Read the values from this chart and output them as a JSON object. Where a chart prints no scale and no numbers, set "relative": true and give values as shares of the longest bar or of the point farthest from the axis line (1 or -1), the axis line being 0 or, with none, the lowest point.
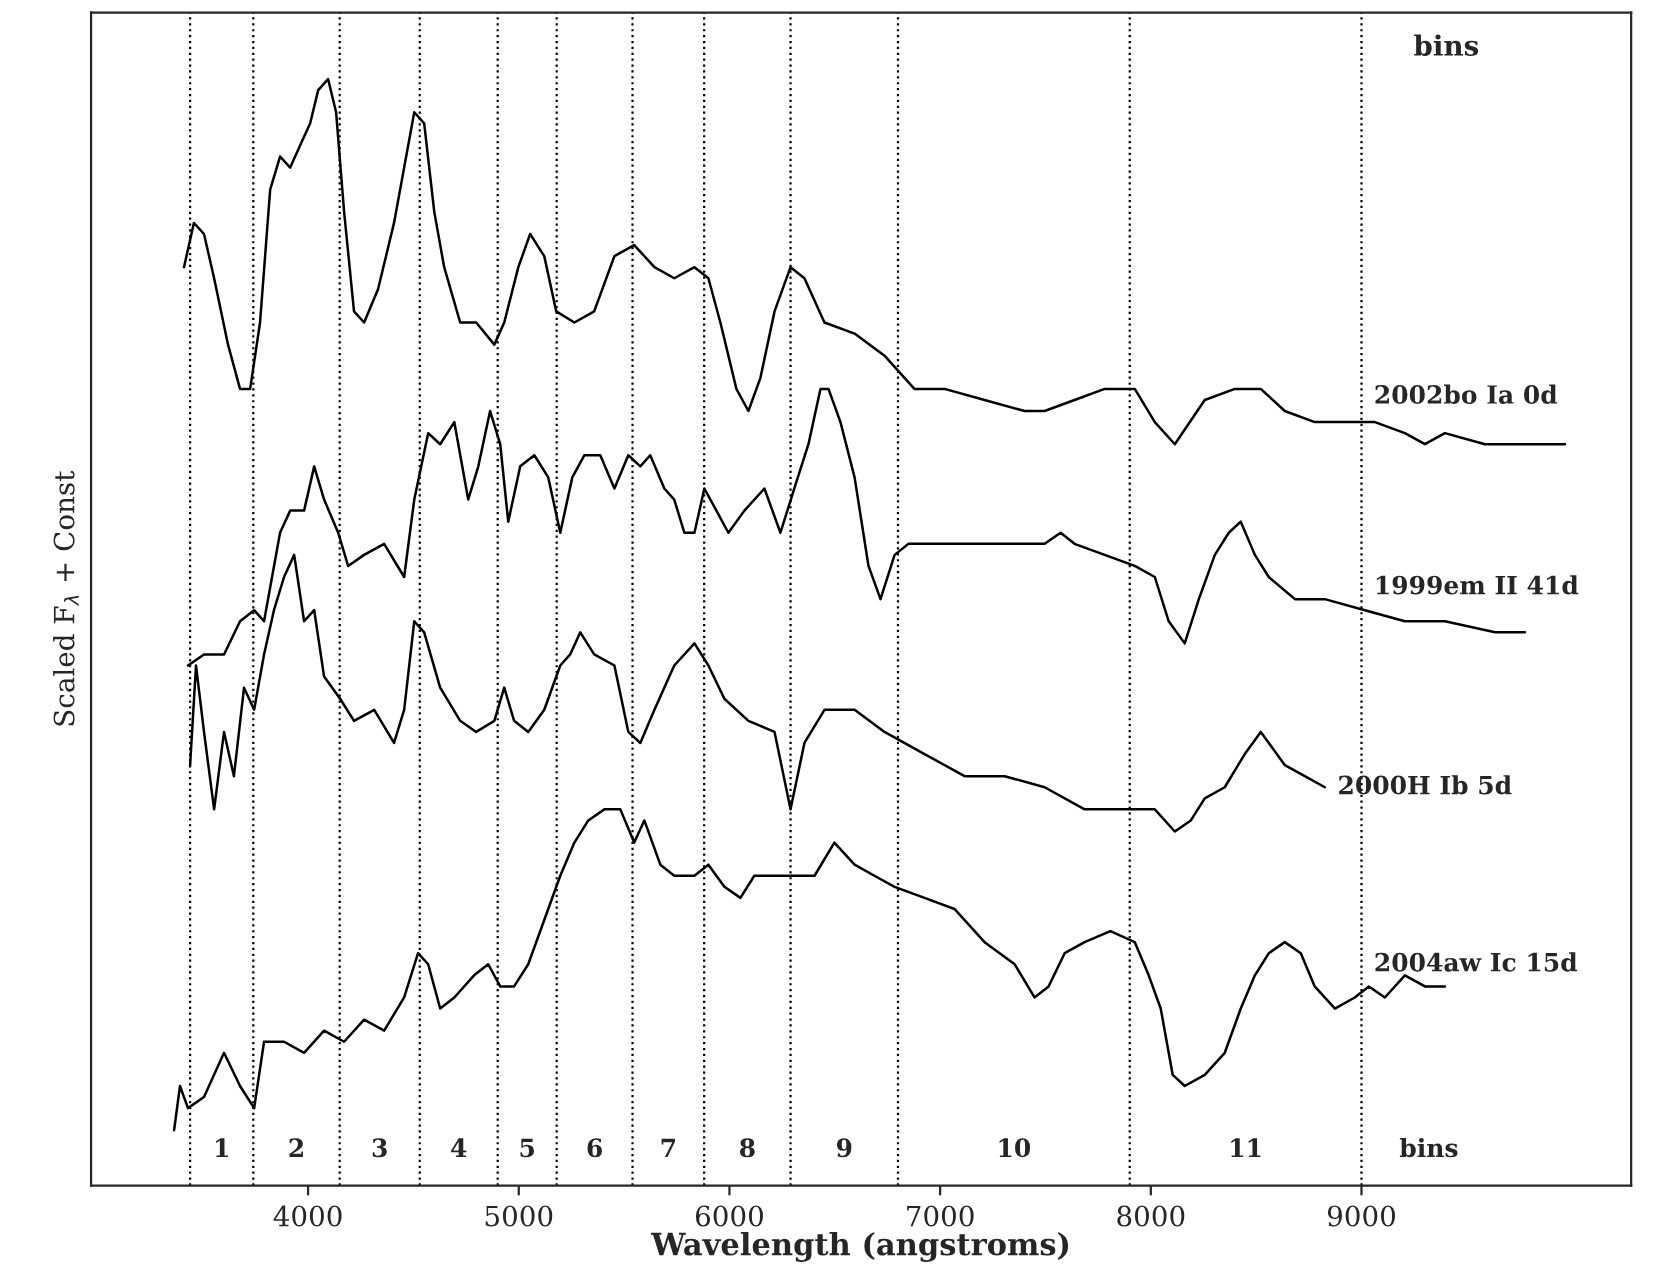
{
  "chart_data": {
    "type": "line",
    "relative": true,
    "xlabel": "Wavelength (angstroms)",
    "ylabel": "Scaled F$_{λ}$ + Const",
    "xlim": [
      2970,
      10280
    ],
    "xticks": [
      4000,
      5000,
      6000,
      7000,
      8000,
      9000
    ],
    "grid": false,
    "line_style": "solid",
    "marker": "none",
    "series": [
      {
        "name": "2002bo Ia 0d",
        "color": "#000000",
        "x": [
          3411,
          3458,
          3506,
          3554,
          3620,
          3677,
          3725,
          3772,
          3820,
          3867,
          3915,
          3962,
          4010,
          4048,
          4095,
          4133,
          4171,
          4218,
          4266,
          4332,
          4408,
          4456,
          4504,
          4551,
          4599,
          4646,
          4722,
          4798,
          4884,
          4931,
          4998,
          5054,
          5121,
          5178,
          5264,
          5358,
          5454,
          5548,
          5644,
          5738,
          5834,
          5900,
          5957,
          6033,
          6090,
          6147,
          6214,
          6290,
          6356,
          6451,
          6594,
          6736,
          6878,
          7021,
          7211,
          7401,
          7496,
          7638,
          7781,
          7924,
          8019,
          8114,
          8256,
          8399,
          8522,
          8636,
          8778,
          8921,
          9064,
          9206,
          9301,
          9396,
          9586,
          9776,
          9966
        ],
        "values": [
          0.83,
          0.87,
          0.86,
          0.82,
          0.76,
          0.72,
          0.72,
          0.78,
          0.9,
          0.93,
          0.92,
          0.94,
          0.96,
          0.99,
          1.0,
          0.97,
          0.88,
          0.79,
          0.78,
          0.81,
          0.87,
          0.92,
          0.97,
          0.96,
          0.88,
          0.83,
          0.78,
          0.78,
          0.76,
          0.78,
          0.83,
          0.86,
          0.84,
          0.79,
          0.78,
          0.79,
          0.84,
          0.85,
          0.83,
          0.82,
          0.83,
          0.82,
          0.78,
          0.72,
          0.7,
          0.73,
          0.79,
          0.83,
          0.82,
          0.78,
          0.77,
          0.75,
          0.72,
          0.72,
          0.71,
          0.7,
          0.7,
          0.71,
          0.72,
          0.72,
          0.69,
          0.67,
          0.71,
          0.72,
          0.72,
          0.7,
          0.69,
          0.69,
          0.69,
          0.68,
          0.67,
          0.68,
          0.67,
          0.67,
          0.67
        ]
      },
      {
        "name": "1999em II 41d",
        "color": "#000000",
        "x": [
          3430,
          3506,
          3601,
          3677,
          3744,
          3791,
          3867,
          3915,
          3981,
          4029,
          4076,
          4143,
          4190,
          4266,
          4361,
          4456,
          4504,
          4570,
          4627,
          4694,
          4760,
          4808,
          4864,
          4912,
          4950,
          5007,
          5074,
          5140,
          5197,
          5254,
          5311,
          5387,
          5454,
          5520,
          5577,
          5624,
          5691,
          5738,
          5786,
          5834,
          5881,
          5938,
          5995,
          6071,
          6166,
          6242,
          6308,
          6375,
          6432,
          6470,
          6527,
          6594,
          6660,
          6717,
          6784,
          6850,
          6926,
          7068,
          7306,
          7496,
          7572,
          7638,
          7781,
          7924,
          8019,
          8085,
          8161,
          8228,
          8304,
          8370,
          8427,
          8494,
          8560,
          8684,
          8826,
          9016,
          9206,
          9396,
          9634,
          9776
        ],
        "values": [
          0.47,
          0.48,
          0.48,
          0.51,
          0.52,
          0.51,
          0.59,
          0.61,
          0.61,
          0.65,
          0.62,
          0.59,
          0.56,
          0.57,
          0.58,
          0.55,
          0.62,
          0.68,
          0.67,
          0.69,
          0.62,
          0.65,
          0.7,
          0.67,
          0.6,
          0.65,
          0.66,
          0.64,
          0.59,
          0.64,
          0.66,
          0.66,
          0.63,
          0.66,
          0.65,
          0.66,
          0.63,
          0.62,
          0.59,
          0.59,
          0.63,
          0.61,
          0.59,
          0.61,
          0.63,
          0.59,
          0.63,
          0.67,
          0.72,
          0.72,
          0.69,
          0.64,
          0.56,
          0.53,
          0.57,
          0.58,
          0.58,
          0.58,
          0.58,
          0.58,
          0.59,
          0.58,
          0.57,
          0.56,
          0.55,
          0.51,
          0.49,
          0.53,
          0.57,
          0.59,
          0.6,
          0.57,
          0.55,
          0.53,
          0.53,
          0.52,
          0.51,
          0.51,
          0.5,
          0.5
        ]
      },
      {
        "name": "2000H Ib 5d",
        "color": "#000000",
        "x": [
          3440,
          3468,
          3506,
          3554,
          3601,
          3648,
          3696,
          3744,
          3791,
          3838,
          3886,
          3934,
          3981,
          4029,
          4076,
          4152,
          4218,
          4314,
          4408,
          4456,
          4504,
          4551,
          4627,
          4722,
          4798,
          4884,
          4931,
          4978,
          5045,
          5121,
          5197,
          5244,
          5292,
          5358,
          5454,
          5520,
          5577,
          5644,
          5738,
          5834,
          5900,
          5976,
          6090,
          6214,
          6290,
          6356,
          6451,
          6594,
          6736,
          6926,
          7116,
          7306,
          7496,
          7686,
          7876,
          8019,
          8114,
          8190,
          8256,
          8351,
          8446,
          8522,
          8636,
          8731,
          8826
        ],
        "values": [
          0.38,
          0.47,
          0.41,
          0.34,
          0.41,
          0.37,
          0.45,
          0.43,
          0.48,
          0.52,
          0.55,
          0.57,
          0.51,
          0.52,
          0.46,
          0.44,
          0.42,
          0.43,
          0.4,
          0.43,
          0.51,
          0.5,
          0.45,
          0.42,
          0.41,
          0.42,
          0.45,
          0.42,
          0.41,
          0.43,
          0.47,
          0.48,
          0.5,
          0.48,
          0.47,
          0.41,
          0.4,
          0.43,
          0.47,
          0.49,
          0.47,
          0.44,
          0.42,
          0.41,
          0.34,
          0.4,
          0.43,
          0.43,
          0.41,
          0.39,
          0.37,
          0.37,
          0.36,
          0.34,
          0.34,
          0.34,
          0.32,
          0.33,
          0.35,
          0.36,
          0.39,
          0.41,
          0.38,
          0.37,
          0.36
        ]
      },
      {
        "name": "2004aw Ic 15d",
        "color": "#000000",
        "x": [
          3364,
          3392,
          3430,
          3506,
          3601,
          3677,
          3744,
          3791,
          3886,
          3981,
          4076,
          4171,
          4266,
          4361,
          4456,
          4522,
          4570,
          4627,
          4694,
          4788,
          4855,
          4912,
          4978,
          5045,
          5121,
          5197,
          5264,
          5330,
          5406,
          5482,
          5548,
          5596,
          5672,
          5738,
          5834,
          5900,
          5976,
          6052,
          6118,
          6214,
          6308,
          6404,
          6498,
          6594,
          6688,
          6784,
          6926,
          7068,
          7211,
          7354,
          7448,
          7515,
          7591,
          7686,
          7808,
          7924,
          7990,
          8047,
          8104,
          8161,
          8256,
          8351,
          8427,
          8494,
          8560,
          8636,
          8712,
          8778,
          8874,
          8968,
          9035,
          9111,
          9206,
          9301,
          9396
        ],
        "values": [
          0.05,
          0.09,
          0.07,
          0.08,
          0.12,
          0.09,
          0.07,
          0.13,
          0.13,
          0.12,
          0.14,
          0.13,
          0.15,
          0.14,
          0.17,
          0.21,
          0.2,
          0.16,
          0.17,
          0.19,
          0.2,
          0.18,
          0.18,
          0.2,
          0.24,
          0.28,
          0.31,
          0.33,
          0.34,
          0.34,
          0.31,
          0.33,
          0.29,
          0.28,
          0.28,
          0.29,
          0.27,
          0.26,
          0.28,
          0.28,
          0.28,
          0.28,
          0.31,
          0.29,
          0.28,
          0.27,
          0.26,
          0.25,
          0.22,
          0.2,
          0.17,
          0.18,
          0.21,
          0.22,
          0.23,
          0.22,
          0.19,
          0.16,
          0.1,
          0.09,
          0.1,
          0.12,
          0.16,
          0.19,
          0.21,
          0.22,
          0.21,
          0.18,
          0.16,
          0.17,
          0.18,
          0.17,
          0.19,
          0.18,
          0.18
        ]
      }
    ],
    "ref_lines": [
      {
        "axis": "x",
        "value": 3440
      },
      {
        "axis": "x",
        "value": 3740
      },
      {
        "axis": "x",
        "value": 4150
      },
      {
        "axis": "x",
        "value": 4530
      },
      {
        "axis": "x",
        "value": 4900
      },
      {
        "axis": "x",
        "value": 5180
      },
      {
        "axis": "x",
        "value": 5540
      },
      {
        "axis": "x",
        "value": 5880
      },
      {
        "axis": "x",
        "value": 6290
      },
      {
        "axis": "x",
        "value": 6800
      },
      {
        "axis": "x",
        "value": 7900
      },
      {
        "axis": "x",
        "value": 9000
      }
    ],
    "annotations": [
      "bins",
      "1",
      "2",
      "3",
      "4",
      "5",
      "6",
      "7",
      "8",
      "9",
      "10",
      "11",
      "bins"
    ]
  }
}
